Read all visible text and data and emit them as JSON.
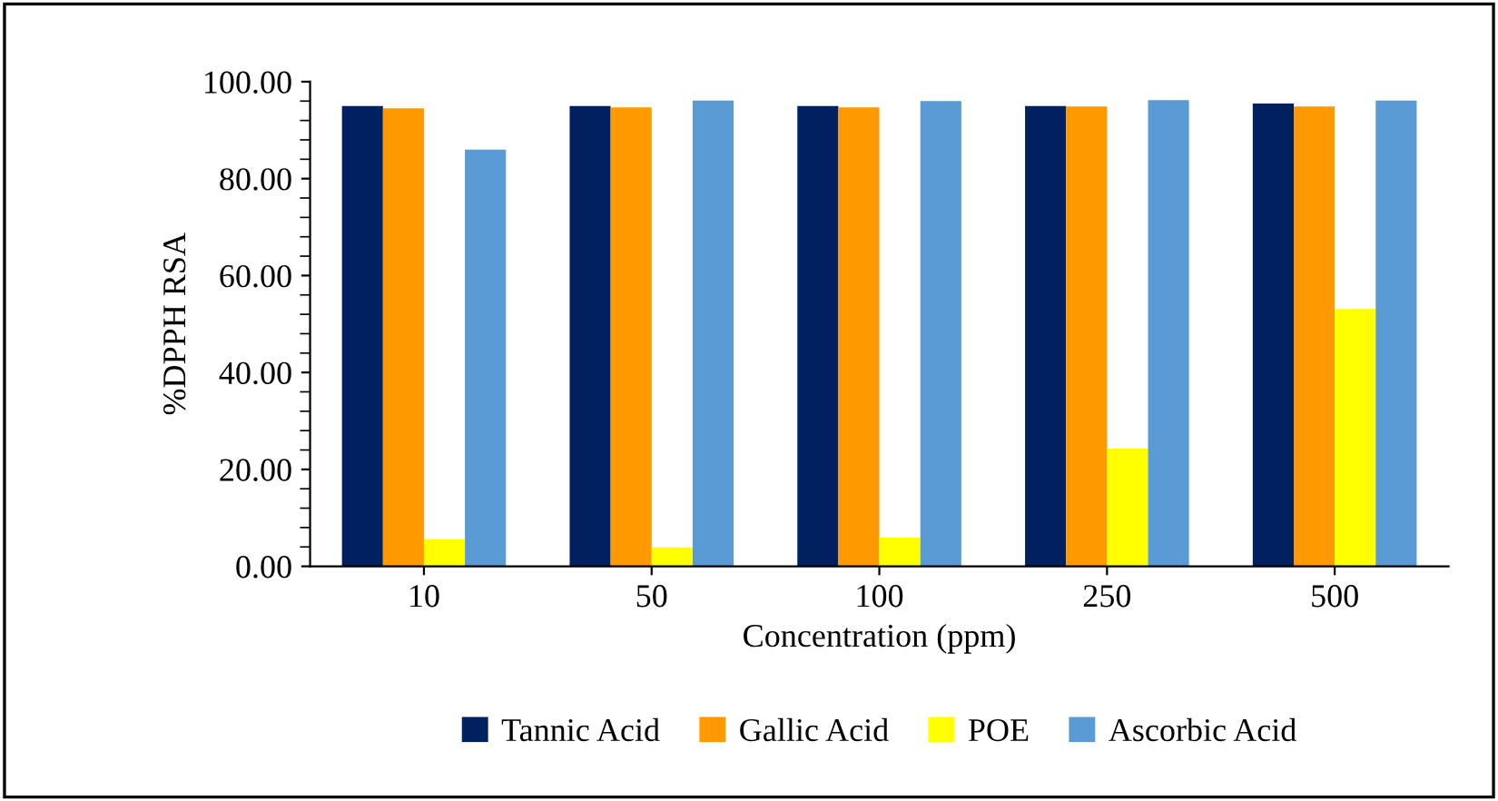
{
  "chart_data": {
    "type": "bar",
    "xlabel": "Concentration (ppm)",
    "ylabel": "%DPPH RSA",
    "categories": [
      "10",
      "50",
      "100",
      "250",
      "500"
    ],
    "series": [
      {
        "name": "Tannic Acid",
        "color": "#002060",
        "values": [
          95.0,
          95.0,
          95.0,
          95.0,
          95.5
        ]
      },
      {
        "name": "Gallic Acid",
        "color": "#ff9900",
        "values": [
          94.5,
          94.7,
          94.7,
          94.9,
          94.9
        ]
      },
      {
        "name": "POE",
        "color": "#ffff00",
        "values": [
          5.6,
          3.9,
          5.9,
          24.3,
          53.1
        ]
      },
      {
        "name": "Ascorbic Acid",
        "color": "#5b9bd5",
        "values": [
          86.0,
          96.1,
          96.0,
          96.2,
          96.1
        ]
      }
    ],
    "ylim": [
      0,
      100
    ],
    "yticks": [
      {
        "value": 0,
        "label": "0.00"
      },
      {
        "value": 20,
        "label": "20.00"
      },
      {
        "value": 40,
        "label": "40.00"
      },
      {
        "value": 60,
        "label": "60.00"
      },
      {
        "value": 80,
        "label": "80.00"
      },
      {
        "value": 100,
        "label": "100.00"
      }
    ],
    "grid": false,
    "legend": "bottom"
  }
}
